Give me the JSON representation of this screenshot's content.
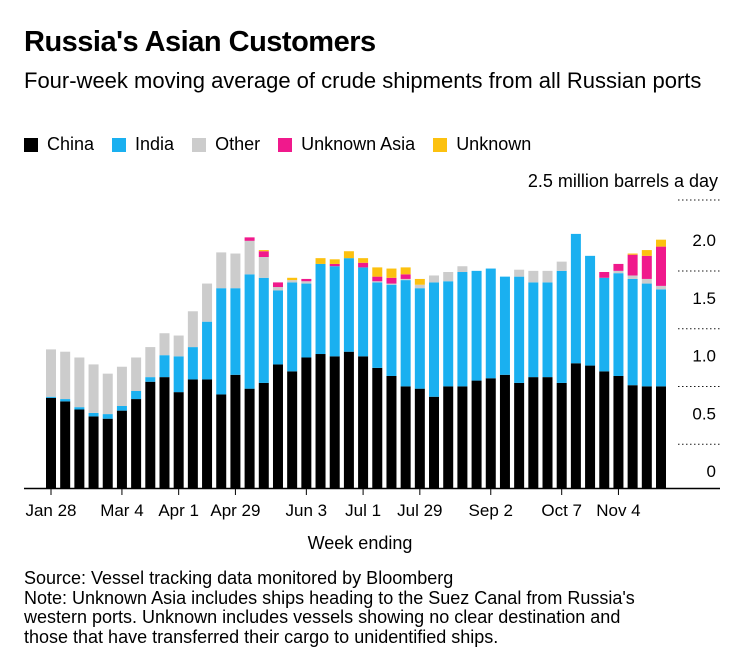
{
  "title": "Russia's Asian Customers",
  "subtitle": "Four-week moving average of crude shipments from all Russian ports",
  "legend": [
    {
      "label": "China",
      "color": "#000000"
    },
    {
      "label": "India",
      "color": "#1ab0f0"
    },
    {
      "label": "Other",
      "color": "#cccccc"
    },
    {
      "label": "Unknown Asia",
      "color": "#f0198c"
    },
    {
      "label": "Unknown",
      "color": "#fcc10f"
    }
  ],
  "unit_label": "2.5 million barrels a day",
  "x_axis_title": "Week ending",
  "source": "Source: Vessel tracking data monitored by Bloomberg",
  "note_lines": [
    "Note: Unknown Asia includes ships heading to the Suez Canal from Russia's",
    "western ports. Unknown includes vessels showing no clear destination and",
    "those that have transferred their cargo to unidentified ships."
  ],
  "chart_data": {
    "type": "bar",
    "stacked": true,
    "title": "Russia's Asian Customers",
    "ylabel": "million barrels a day",
    "xlabel": "Week ending",
    "ylim": [
      0,
      2.5
    ],
    "yticks": [
      0,
      0.5,
      1.0,
      1.5,
      2.0
    ],
    "ytick_labels": [
      "0",
      "0.5",
      "1.0",
      "1.5",
      "2.0"
    ],
    "xtick_labels": [
      {
        "label": "Jan 28",
        "index": 0
      },
      {
        "label": "Mar 4",
        "index": 5
      },
      {
        "label": "Apr 1",
        "index": 9
      },
      {
        "label": "Apr 29",
        "index": 13
      },
      {
        "label": "Jun 3",
        "index": 18
      },
      {
        "label": "Jul 1",
        "index": 22
      },
      {
        "label": "Jul 29",
        "index": 26
      },
      {
        "label": "Sep 2",
        "index": 31
      },
      {
        "label": "Oct 7",
        "index": 36
      },
      {
        "label": "Nov 4",
        "index": 40
      }
    ],
    "series": [
      {
        "name": "China",
        "color": "#000000",
        "values": [
          0.78,
          0.75,
          0.68,
          0.62,
          0.6,
          0.67,
          0.77,
          0.92,
          0.96,
          0.83,
          0.94,
          0.94,
          0.81,
          0.98,
          0.86,
          0.91,
          1.07,
          1.01,
          1.13,
          1.16,
          1.14,
          1.18,
          1.14,
          1.04,
          0.97,
          0.88,
          0.86,
          0.79,
          0.88,
          0.88,
          0.93,
          0.95,
          0.98,
          0.91,
          0.96,
          0.96,
          0.91,
          1.08,
          1.06,
          1.01,
          0.97,
          0.89,
          0.88,
          0.88
        ]
      },
      {
        "name": "India",
        "color": "#1ab0f0",
        "values": [
          0.01,
          0.02,
          0.02,
          0.03,
          0.04,
          0.04,
          0.07,
          0.04,
          0.19,
          0.31,
          0.28,
          0.5,
          0.92,
          0.75,
          0.99,
          0.91,
          0.64,
          0.77,
          0.64,
          0.78,
          0.78,
          0.81,
          0.77,
          0.74,
          0.79,
          0.92,
          0.87,
          0.99,
          0.91,
          0.99,
          0.95,
          0.95,
          0.85,
          0.92,
          0.82,
          0.82,
          0.97,
          1.12,
          0.95,
          0.81,
          0.89,
          0.92,
          0.89,
          0.84
        ]
      },
      {
        "name": "Other",
        "color": "#cccccc",
        "values": [
          0.41,
          0.41,
          0.43,
          0.42,
          0.35,
          0.34,
          0.29,
          0.26,
          0.19,
          0.18,
          0.31,
          0.33,
          0.31,
          0.3,
          0.29,
          0.18,
          0.03,
          0.02,
          0.02,
          0.0,
          0.0,
          0.0,
          0.0,
          0.01,
          0.01,
          0.01,
          0.03,
          0.06,
          0.08,
          0.05,
          0.0,
          0.0,
          0.0,
          0.06,
          0.1,
          0.1,
          0.08,
          0.0,
          0.0,
          0.0,
          0.02,
          0.03,
          0.04,
          0.03
        ]
      },
      {
        "name": "Unknown Asia",
        "color": "#f0198c",
        "values": [
          0,
          0,
          0,
          0,
          0,
          0,
          0,
          0,
          0,
          0,
          0,
          0,
          0,
          0,
          0.03,
          0.05,
          0.04,
          0,
          0.02,
          0,
          0.02,
          0,
          0.04,
          0.04,
          0.05,
          0.04,
          0,
          0,
          0,
          0,
          0,
          0,
          0,
          0,
          0,
          0,
          0,
          0,
          0,
          0.05,
          0.06,
          0.18,
          0.2,
          0.34
        ]
      },
      {
        "name": "Unknown",
        "color": "#fcc10f",
        "values": [
          0,
          0,
          0,
          0,
          0,
          0,
          0,
          0,
          0,
          0,
          0,
          0,
          0,
          0,
          0,
          0.01,
          0,
          0.02,
          0,
          0.05,
          0.04,
          0.06,
          0.04,
          0.08,
          0.08,
          0.06,
          0.05,
          0,
          0,
          0,
          0,
          0,
          0,
          0,
          0,
          0,
          0,
          0,
          0,
          0,
          0,
          0.01,
          0.05,
          0.06
        ]
      }
    ]
  }
}
